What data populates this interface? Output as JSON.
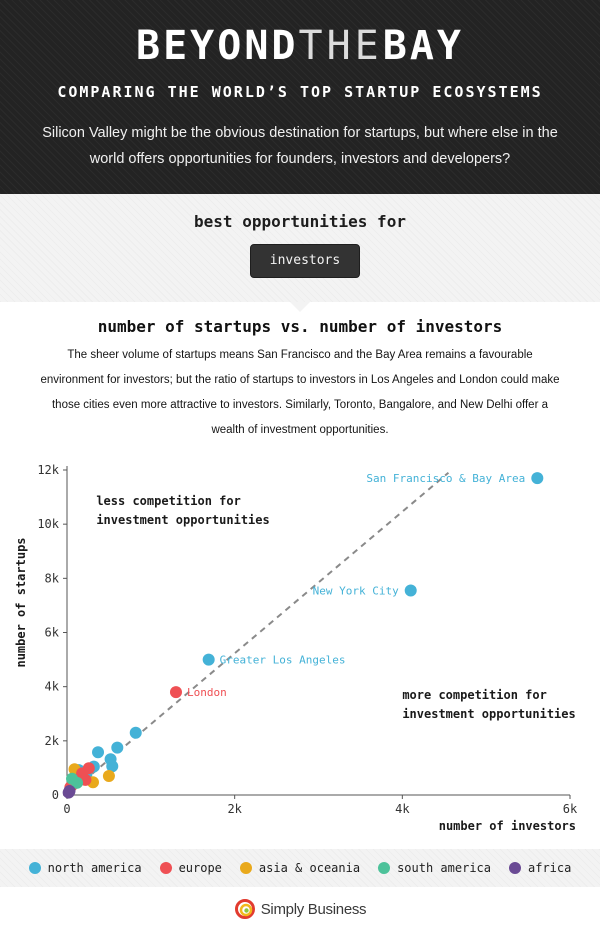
{
  "header": {
    "title_bold_1": "BEYOND",
    "title_thin": "THE",
    "title_bold_2": "BAY",
    "subtitle": "COMPARING THE WORLD’S TOP STARTUP ECOSYSTEMS",
    "intro": "Silicon Valley might be the obvious destination for startups, but where else in the world offers opportunities for founders, investors and developers?"
  },
  "selector": {
    "label": "best opportunities for",
    "button": "investors"
  },
  "section": {
    "title": "number of startups vs. number of investors",
    "description": "The sheer volume of startups means San Francisco and the Bay Area remains a favourable environment for investors; but the ratio of startups to investors in Los Angeles and London could make those cities even more attractive to investors. Similarly, Toronto, Bangalore, and New Delhi offer a wealth of investment opportunities."
  },
  "legend": [
    {
      "name": "north america",
      "color": "#44b2d7"
    },
    {
      "name": "europe",
      "color": "#ef5054"
    },
    {
      "name": "asia & oceania",
      "color": "#e9a91c"
    },
    {
      "name": "south america",
      "color": "#4dc29a"
    },
    {
      "name": "africa",
      "color": "#6a4a94"
    }
  ],
  "footer": {
    "brand": "Simply Business"
  },
  "chart_data": {
    "type": "scatter",
    "xlabel": "number of investors",
    "ylabel": "number of startups",
    "xlim": [
      0,
      6000
    ],
    "ylim": [
      0,
      12000
    ],
    "x_ticks": [
      0,
      2000,
      4000,
      6000
    ],
    "x_tick_labels": [
      "0",
      "2k",
      "4k",
      "6k"
    ],
    "y_ticks": [
      0,
      2000,
      4000,
      6000,
      8000,
      10000,
      12000
    ],
    "y_tick_labels": [
      "0",
      "2k",
      "4k",
      "6k",
      "8k",
      "10k",
      "12k"
    ],
    "grid": false,
    "trendline": {
      "style": "dashed",
      "from": [
        0,
        0
      ],
      "to": [
        4550,
        11900
      ]
    },
    "annotations": [
      {
        "text": "less competition for\ninvestment opportunities",
        "x": 350,
        "y": 10700
      },
      {
        "text": "more competition for\ninvestment opportunities",
        "x": 4000,
        "y": 3550
      }
    ],
    "points": [
      {
        "x": 5610,
        "y": 11700,
        "region": "north america",
        "label": "San Francisco & Bay Area"
      },
      {
        "x": 4100,
        "y": 7550,
        "region": "north america",
        "label": "New York City"
      },
      {
        "x": 1690,
        "y": 5000,
        "region": "north america",
        "label": "Greater Los Angeles"
      },
      {
        "x": 1300,
        "y": 3800,
        "region": "europe",
        "label": "London"
      },
      {
        "x": 820,
        "y": 2300,
        "region": "north america"
      },
      {
        "x": 600,
        "y": 1750,
        "region": "north america"
      },
      {
        "x": 370,
        "y": 1580,
        "region": "north america"
      },
      {
        "x": 520,
        "y": 1320,
        "region": "north america"
      },
      {
        "x": 540,
        "y": 1060,
        "region": "north america"
      },
      {
        "x": 320,
        "y": 1050,
        "region": "north america"
      },
      {
        "x": 140,
        "y": 920,
        "region": "north america"
      },
      {
        "x": 230,
        "y": 740,
        "region": "north america"
      },
      {
        "x": 500,
        "y": 700,
        "region": "asia & oceania"
      },
      {
        "x": 310,
        "y": 470,
        "region": "asia & oceania"
      },
      {
        "x": 90,
        "y": 950,
        "region": "asia & oceania"
      },
      {
        "x": 160,
        "y": 660,
        "region": "asia & oceania"
      },
      {
        "x": 260,
        "y": 990,
        "region": "europe"
      },
      {
        "x": 180,
        "y": 800,
        "region": "europe"
      },
      {
        "x": 110,
        "y": 560,
        "region": "europe"
      },
      {
        "x": 60,
        "y": 360,
        "region": "europe"
      },
      {
        "x": 40,
        "y": 280,
        "region": "europe"
      },
      {
        "x": 220,
        "y": 560,
        "region": "europe"
      },
      {
        "x": 60,
        "y": 600,
        "region": "south america"
      },
      {
        "x": 120,
        "y": 450,
        "region": "south america"
      },
      {
        "x": 30,
        "y": 150,
        "region": "africa"
      },
      {
        "x": 20,
        "y": 90,
        "region": "africa"
      }
    ]
  }
}
